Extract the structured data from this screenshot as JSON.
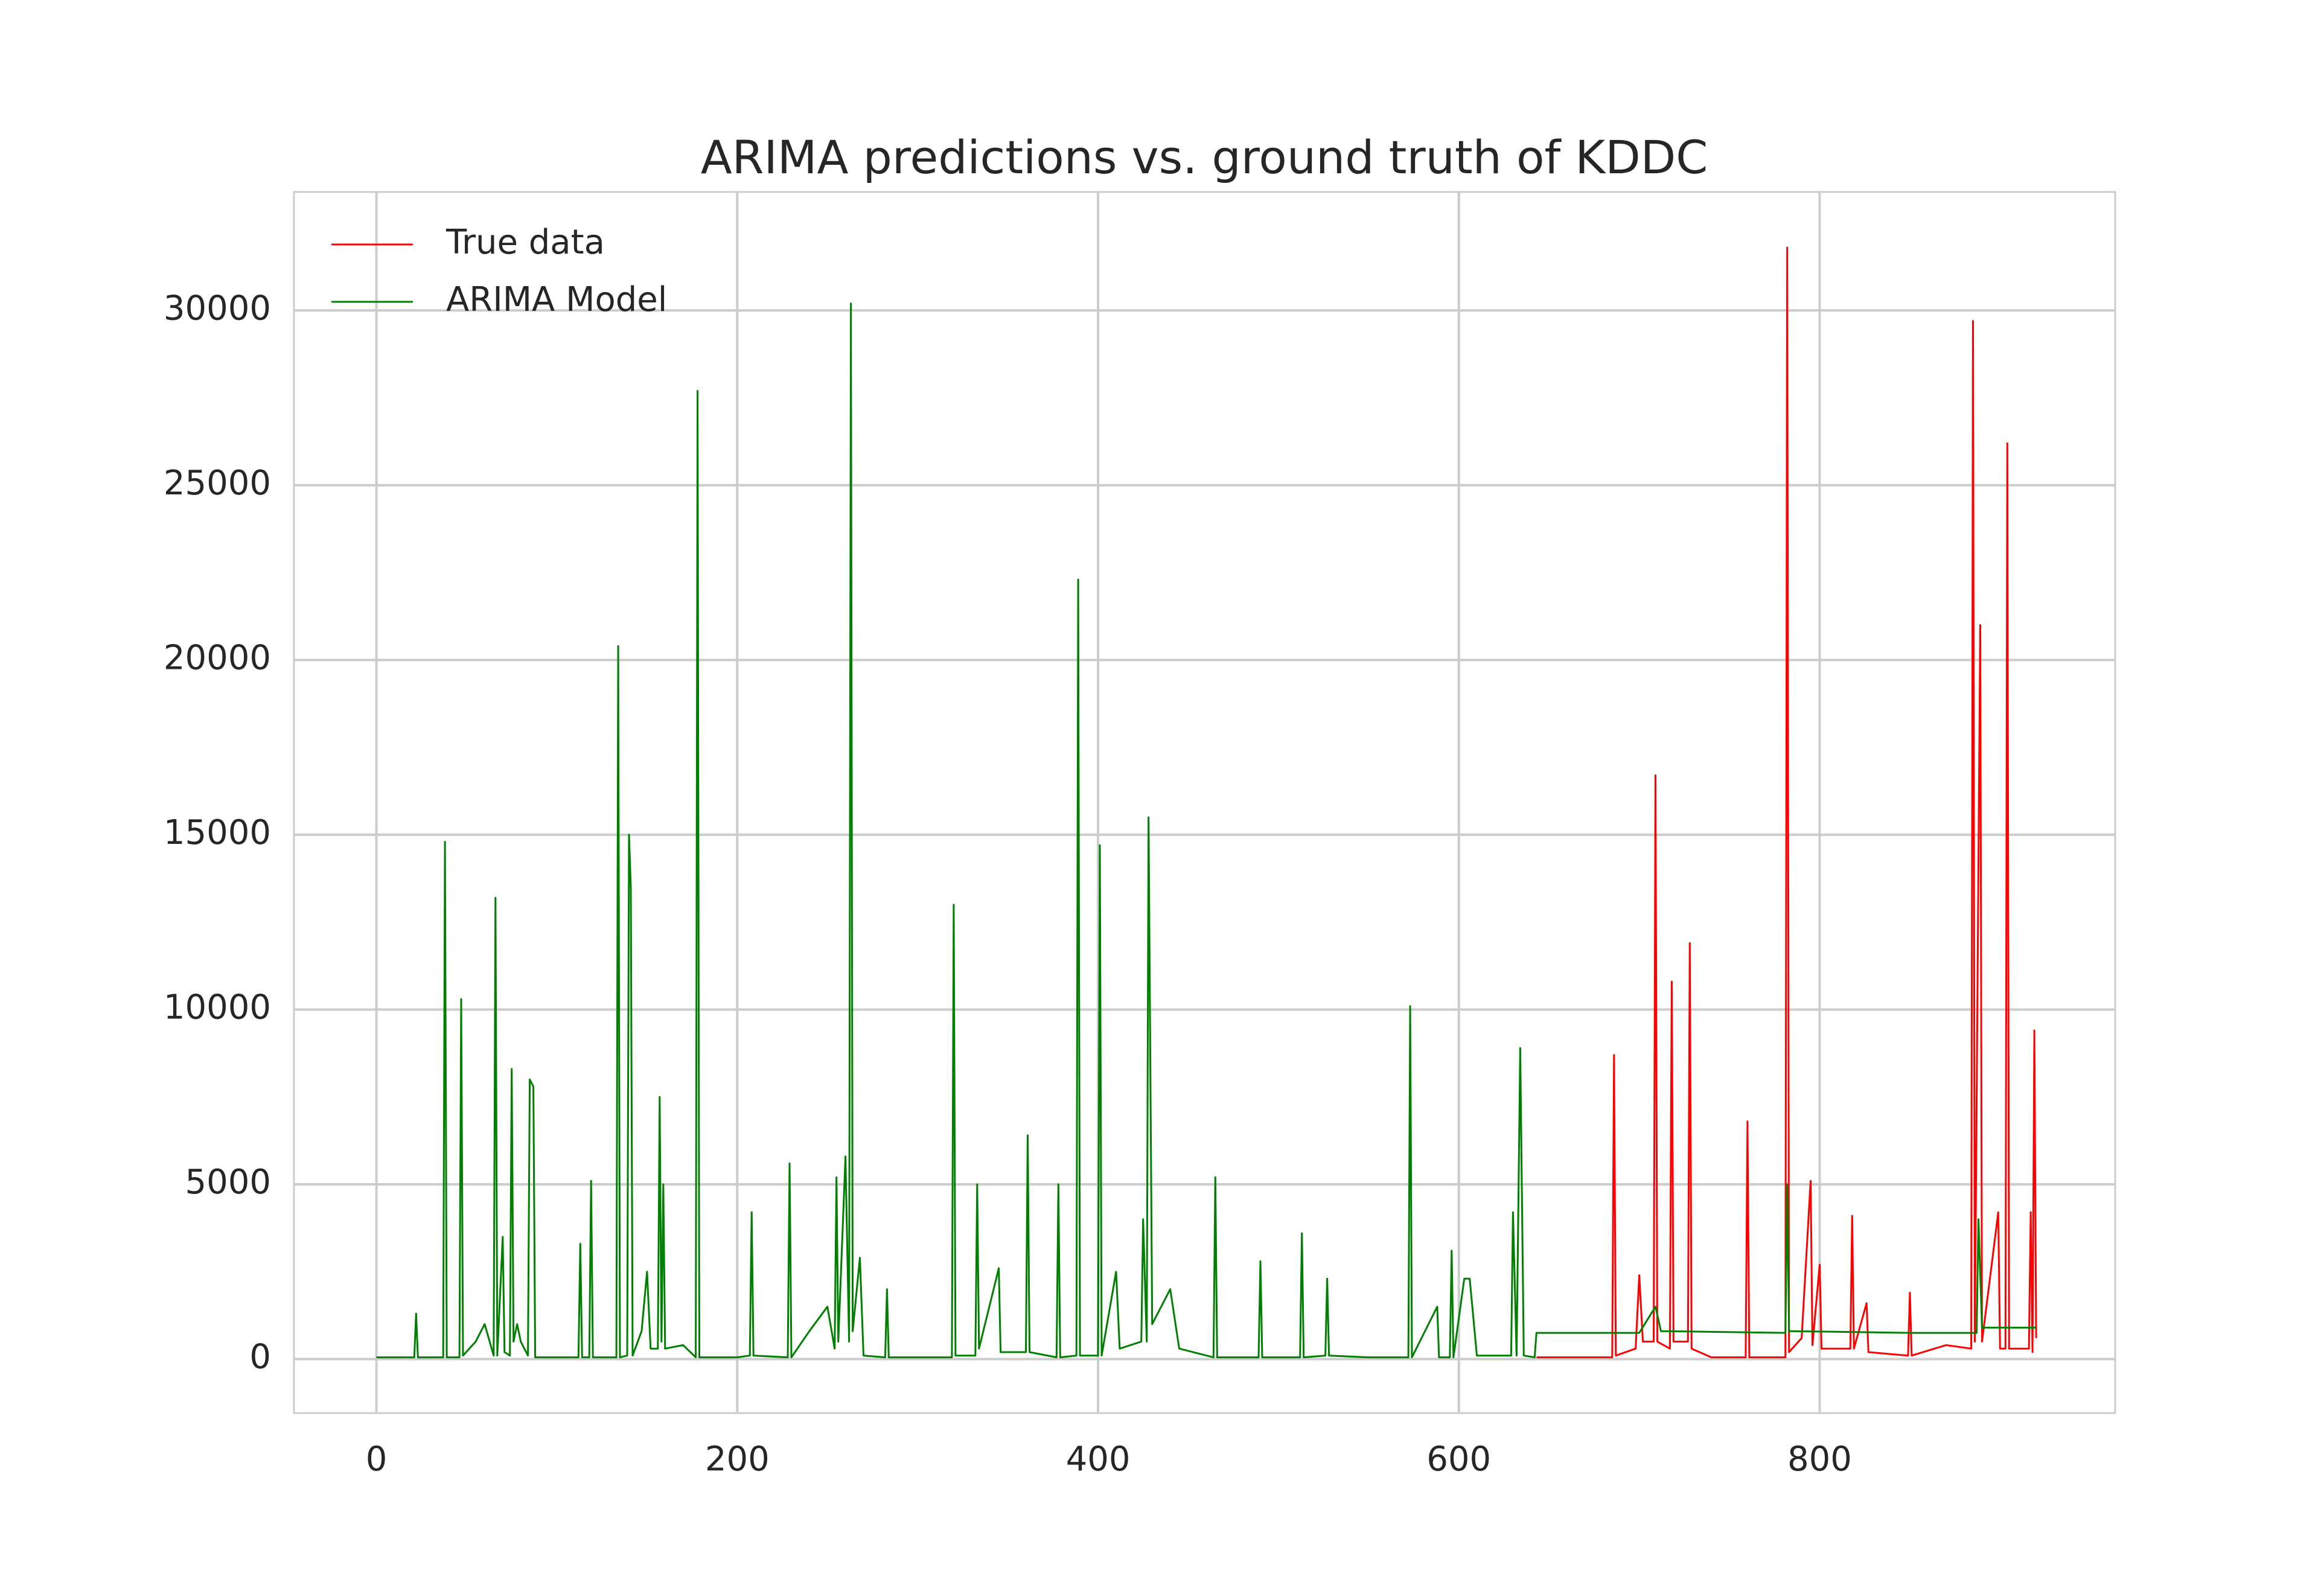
{
  "chart_data": {
    "type": "line",
    "title": "ARIMA predictions vs. ground truth of KDDC",
    "xlim": [
      -45.7,
      963.8
    ],
    "ylim": [
      -1545,
      33390
    ],
    "xticks": [
      0,
      200,
      400,
      600,
      800
    ],
    "yticks": [
      0,
      5000,
      10000,
      15000,
      20000,
      25000,
      30000
    ],
    "grid": true,
    "legend": "upper left",
    "series": [
      {
        "name": "True data",
        "color": "#ff0000",
        "x": [
          643,
          685,
          686,
          687,
          698,
          700,
          702,
          708,
          709,
          710,
          717,
          718,
          719,
          727,
          728,
          729,
          740,
          759,
          760,
          761,
          781,
          782,
          783,
          790,
          795,
          796,
          800,
          801,
          817,
          818,
          819,
          826,
          827,
          849,
          850,
          851,
          870,
          884,
          885,
          886,
          889,
          890,
          899,
          900,
          903,
          904,
          905,
          916,
          917,
          918,
          919,
          920
        ],
        "values": [
          50,
          50,
          8700,
          100,
          300,
          2400,
          500,
          500,
          16700,
          500,
          300,
          10800,
          500,
          500,
          11900,
          300,
          50,
          50,
          6800,
          50,
          50,
          31800,
          200,
          600,
          5100,
          400,
          2700,
          300,
          300,
          4100,
          300,
          1600,
          200,
          100,
          1900,
          100,
          400,
          300,
          29700,
          500,
          21000,
          500,
          4200,
          300,
          300,
          26200,
          300,
          300,
          4200,
          200,
          9400,
          600
        ]
      },
      {
        "name": "ARIMA Model",
        "color": "#008000",
        "x": [
          0,
          21,
          22,
          23,
          37,
          38,
          39,
          46,
          47,
          48,
          55,
          60,
          65,
          66,
          67,
          70,
          71,
          74,
          75,
          76,
          78,
          80,
          84,
          85,
          87,
          88,
          112,
          113,
          114,
          118,
          119,
          120,
          133,
          134,
          135,
          139,
          140,
          141,
          142,
          147,
          150,
          152,
          156,
          157,
          158,
          159,
          160,
          170,
          177,
          178,
          179,
          200,
          207,
          208,
          209,
          228,
          229,
          230,
          240,
          250,
          254,
          255,
          256,
          260,
          262,
          263,
          264,
          268,
          270,
          282,
          283,
          284,
          319,
          320,
          321,
          332,
          333,
          334,
          345,
          346,
          360,
          361,
          362,
          377,
          378,
          379,
          388,
          389,
          390,
          400,
          401,
          402,
          410,
          412,
          424,
          425,
          427,
          428,
          430,
          440,
          445,
          464,
          465,
          466,
          489,
          490,
          491,
          512,
          513,
          514,
          526,
          527,
          528,
          550,
          572,
          573,
          574,
          588,
          589,
          595,
          596,
          597,
          603,
          606,
          610,
          629,
          630,
          632,
          634,
          636,
          642,
          643,
          700,
          709,
          712,
          781,
          782,
          783,
          850,
          887,
          888,
          890,
          920
        ],
        "values": [
          50,
          50,
          1300,
          50,
          50,
          14800,
          50,
          50,
          10300,
          100,
          500,
          1000,
          100,
          13200,
          100,
          3500,
          200,
          100,
          8300,
          500,
          1000,
          500,
          100,
          8000,
          7800,
          50,
          50,
          3300,
          50,
          50,
          5100,
          50,
          50,
          20400,
          50,
          100,
          15000,
          13500,
          100,
          800,
          2500,
          300,
          300,
          7500,
          500,
          5000,
          300,
          400,
          50,
          27700,
          50,
          50,
          100,
          4200,
          100,
          50,
          5600,
          50,
          800,
          1500,
          300,
          5200,
          500,
          5800,
          500,
          30200,
          800,
          2900,
          100,
          50,
          2000,
          50,
          50,
          13000,
          100,
          100,
          5000,
          300,
          2600,
          200,
          200,
          6400,
          200,
          50,
          5000,
          50,
          100,
          22300,
          100,
          100,
          14700,
          100,
          2500,
          300,
          500,
          4000,
          500,
          15500,
          1000,
          2000,
          300,
          50,
          5200,
          50,
          50,
          2800,
          50,
          50,
          3600,
          50,
          100,
          2300,
          100,
          50,
          50,
          10100,
          50,
          1500,
          50,
          50,
          3100,
          50,
          2300,
          2300,
          100,
          100,
          4200,
          100,
          8900,
          100,
          50,
          750,
          750,
          1500,
          800,
          750,
          5000,
          800,
          750,
          750,
          4000,
          900,
          900
        ]
      }
    ]
  }
}
